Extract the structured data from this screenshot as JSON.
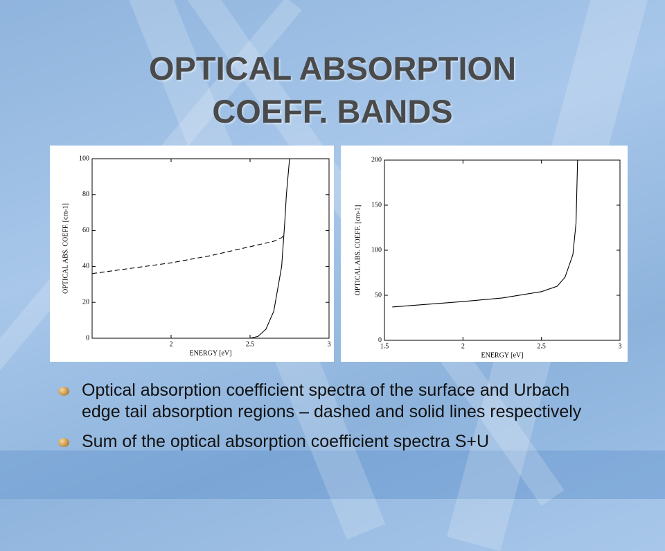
{
  "title": "OPTICAL ABSORPTION COEFF. BANDS",
  "bullets": [
    "Optical absorption coefficient spectra of the surface and Urbach edge tail absorption regions – dashed and solid lines respectively",
    "Sum of the optical absorption coefficient spectra S+U"
  ],
  "chart_data": [
    {
      "type": "line",
      "xlabel": "ENERGY [eV]",
      "ylabel": "OPTICAL ABS. COEFF. [cm-1]",
      "x": [
        1.5,
        1.75,
        2,
        2.25,
        2.5,
        2.55,
        2.6,
        2.65,
        2.7,
        2.72,
        2.73,
        2.75
      ],
      "series": [
        {
          "color": "#000000",
          "dashed": true,
          "values": [
            36,
            39,
            42,
            46,
            51,
            52,
            53,
            54,
            56,
            58,
            null,
            null
          ]
        },
        {
          "color": "#000000",
          "dashed": false,
          "values": [
            0,
            0,
            0,
            0,
            0,
            1,
            5,
            15,
            40,
            65,
            80,
            100
          ]
        }
      ],
      "xlim": [
        1.5,
        3
      ],
      "xticks": [
        2,
        2.5,
        3
      ],
      "ylim": [
        0,
        100
      ],
      "yticks": [
        0,
        20,
        40,
        60,
        80,
        100
      ]
    },
    {
      "type": "line",
      "xlabel": "ENERGY [eV]",
      "ylabel": "OPTICAL ABS. COEFF. [cm-1]",
      "x": [
        1.55,
        2,
        2.25,
        2.5,
        2.6,
        2.65,
        2.7,
        2.72,
        2.73
      ],
      "series": [
        {
          "color": "#000000",
          "dashed": false,
          "values": [
            37,
            43,
            47,
            54,
            60,
            70,
            95,
            130,
            200
          ]
        }
      ],
      "xlim": [
        1.5,
        3
      ],
      "xticks": [
        1.5,
        2,
        2.5,
        3
      ],
      "ylim": [
        0,
        200
      ],
      "yticks": [
        0,
        50,
        100,
        150,
        200
      ]
    }
  ]
}
